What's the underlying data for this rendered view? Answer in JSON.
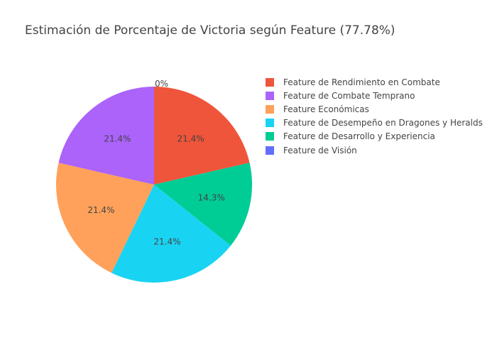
{
  "title": "Estimación de Porcentaje de Victoria según Feature (77.78%)",
  "chart_data": {
    "type": "pie",
    "title": "Estimación de Porcentaje de Victoria según Feature (77.78%)",
    "legend_position": "top-right",
    "start_angle": "12 o'clock",
    "direction": "clockwise",
    "slices": [
      {
        "label": "Feature de Rendimiento en Combate",
        "value": 3,
        "percent_text": "21.4%",
        "color": "#ef553b"
      },
      {
        "label": "Feature de Desarrollo y Experiencia",
        "value": 2,
        "percent_text": "14.3%",
        "color": "#00cc96"
      },
      {
        "label": "Feature de Desempeño en Dragones y Heralds",
        "value": 3,
        "percent_text": "21.4%",
        "color": "#19d3f3"
      },
      {
        "label": "Feature Económicas",
        "value": 3,
        "percent_text": "21.4%",
        "color": "#ffa15a"
      },
      {
        "label": "Feature de Combate Temprano",
        "value": 3,
        "percent_text": "21.4%",
        "color": "#ab63fa"
      },
      {
        "label": "Feature de Visión",
        "value": 0,
        "percent_text": "0%",
        "color": "#636efa"
      }
    ],
    "legend_order": [
      "Feature de Rendimiento en Combate",
      "Feature de Combate Temprano",
      "Feature Económicas",
      "Feature de Desempeño en Dragones y Heralds",
      "Feature de Desarrollo y Experiencia",
      "Feature de Visión"
    ]
  }
}
